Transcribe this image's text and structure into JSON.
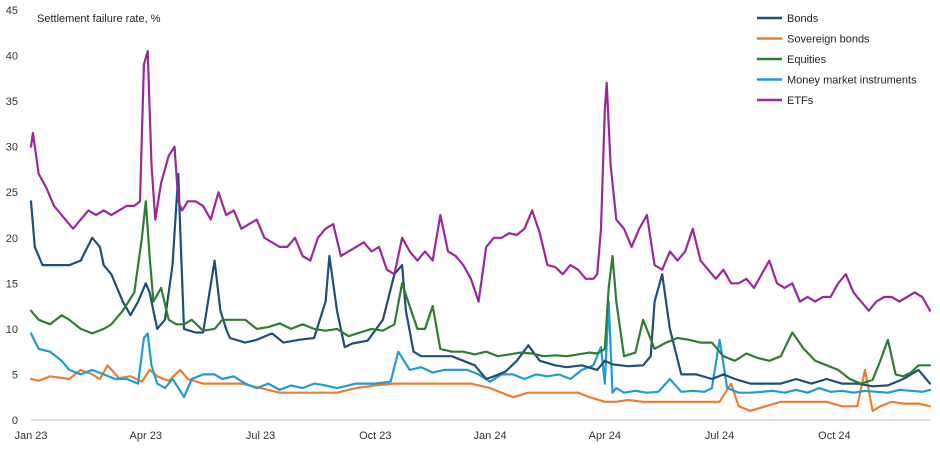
{
  "chart_data": {
    "type": "line",
    "title": "Settlement failure rate, %",
    "xlabel": "",
    "ylabel": "Settlement failure rate, %",
    "ylim": [
      0,
      45
    ],
    "y_ticks": [
      0,
      5,
      10,
      15,
      20,
      25,
      30,
      35,
      40,
      45
    ],
    "xlim": [
      0,
      23.5
    ],
    "x_tick_labels": [
      {
        "x": 0,
        "label": "Jan 23"
      },
      {
        "x": 3,
        "label": "Apr 23"
      },
      {
        "x": 6,
        "label": "Jul 23"
      },
      {
        "x": 9,
        "label": "Oct 23"
      },
      {
        "x": 12,
        "label": "Jan 24"
      },
      {
        "x": 15,
        "label": "Apr 24"
      },
      {
        "x": 18,
        "label": "Jul 24"
      },
      {
        "x": 21,
        "label": "Oct 24"
      }
    ],
    "grid": false,
    "legend": "top-right",
    "series": [
      {
        "name": "Bonds",
        "color": "#1f4e79",
        "x": [
          0,
          0.1,
          0.3,
          0.6,
          1,
          1.3,
          1.6,
          1.8,
          1.9,
          2.1,
          2.4,
          2.6,
          2.8,
          3.0,
          3.1,
          3.2,
          3.3,
          3.5,
          3.7,
          3.85,
          3.9,
          4.0,
          4.3,
          4.5,
          4.8,
          4.95,
          5.1,
          5.2,
          5.6,
          5.9,
          6.3,
          6.6,
          7.0,
          7.4,
          7.7,
          7.8,
          8.0,
          8.2,
          8.4,
          8.8,
          9.2,
          9.5,
          9.7,
          9.8,
          10.0,
          10.2,
          10.6,
          11.0,
          11.3,
          11.6,
          11.9,
          12.1,
          12.4,
          12.7,
          13.0,
          13.3,
          13.7,
          14.0,
          14.4,
          14.8,
          15.0,
          15.2,
          15.6,
          16.0,
          16.2,
          16.3,
          16.5,
          16.7,
          17.0,
          17.4,
          17.8,
          18.1,
          18.4,
          18.8,
          19.2,
          19.6,
          20.0,
          20.4,
          20.8,
          21.2,
          21.6,
          22.0,
          22.4,
          22.8,
          23.2,
          23.5
        ],
        "values": [
          24,
          19,
          17,
          17,
          17,
          17.5,
          20,
          19,
          17,
          16,
          13,
          11.5,
          13,
          15,
          14,
          12,
          10,
          11,
          17,
          27,
          21,
          10,
          9.6,
          9.6,
          17.5,
          12,
          10,
          9,
          8.5,
          8.8,
          9.5,
          8.5,
          8.8,
          9,
          13,
          18,
          12,
          8,
          8.4,
          8.7,
          11,
          16,
          17,
          12,
          7.5,
          7,
          7,
          7,
          6.5,
          6,
          4.5,
          4.8,
          5.3,
          6.5,
          8.2,
          6.5,
          6,
          5.8,
          6,
          5.5,
          6.5,
          6.1,
          5.9,
          6,
          7,
          13,
          16,
          10,
          5,
          5,
          4.5,
          5,
          4.5,
          4,
          4,
          4,
          4.5,
          4,
          4.5,
          4,
          4,
          3.7,
          3.8,
          4.5,
          5.5,
          4
        ]
      },
      {
        "name": "Sovereign bonds",
        "color": "#ed7d31",
        "x": [
          0,
          0.2,
          0.5,
          1,
          1.3,
          1.6,
          1.8,
          2.0,
          2.3,
          2.6,
          2.9,
          3.1,
          3.3,
          3.6,
          3.9,
          4.1,
          4.5,
          5.0,
          5.5,
          6.0,
          6.5,
          7.0,
          7.5,
          8.0,
          8.5,
          9.0,
          9.5,
          10.0,
          10.5,
          11.0,
          11.5,
          12.0,
          12.3,
          12.6,
          13.0,
          13.5,
          14.0,
          14.3,
          14.6,
          15.0,
          15.3,
          15.6,
          16.0,
          16.5,
          17.0,
          17.5,
          18.0,
          18.3,
          18.5,
          18.8,
          19.2,
          19.6,
          20.0,
          20.4,
          20.8,
          21.2,
          21.6,
          21.8,
          22.0,
          22.2,
          22.5,
          22.8,
          23.2,
          23.5
        ],
        "values": [
          4.5,
          4.3,
          4.8,
          4.5,
          5.5,
          5,
          4.5,
          6,
          4.6,
          4.8,
          4.2,
          5.5,
          4.8,
          4.3,
          5.5,
          4.5,
          4,
          4,
          4,
          3.5,
          3,
          3,
          3,
          3,
          3.5,
          3.8,
          4,
          4,
          4,
          4,
          4,
          3.5,
          3,
          2.5,
          3,
          3,
          3,
          3,
          2.5,
          2,
          2,
          2.2,
          2,
          2,
          2,
          2,
          2,
          4,
          1.5,
          1,
          1.5,
          2,
          2,
          2,
          2,
          1.5,
          1.5,
          5.5,
          1,
          1.5,
          2,
          1.8,
          1.8,
          1.5
        ]
      },
      {
        "name": "Equities",
        "color": "#2e7d32",
        "x": [
          0,
          0.2,
          0.5,
          0.8,
          1.0,
          1.3,
          1.6,
          1.9,
          2.1,
          2.4,
          2.7,
          2.9,
          3.0,
          3.1,
          3.2,
          3.4,
          3.6,
          3.8,
          4.0,
          4.2,
          4.5,
          4.8,
          5.0,
          5.3,
          5.6,
          5.9,
          6.2,
          6.5,
          6.8,
          7.1,
          7.4,
          7.7,
          8.0,
          8.3,
          8.6,
          8.9,
          9.2,
          9.5,
          9.7,
          9.9,
          10.1,
          10.3,
          10.5,
          10.7,
          11.0,
          11.3,
          11.6,
          11.9,
          12.2,
          12.5,
          12.8,
          13.1,
          13.4,
          13.7,
          14.0,
          14.3,
          14.6,
          14.8,
          15.0,
          15.1,
          15.2,
          15.3,
          15.5,
          15.8,
          16.0,
          16.3,
          16.6,
          16.9,
          17.2,
          17.5,
          17.8,
          18.1,
          18.4,
          18.7,
          19.0,
          19.3,
          19.6,
          19.9,
          20.2,
          20.5,
          20.8,
          21.1,
          21.4,
          21.7,
          22.0,
          22.2,
          22.4,
          22.6,
          22.8,
          23.0,
          23.2,
          23.5
        ],
        "values": [
          12,
          11,
          10.5,
          11.5,
          11,
          10,
          9.5,
          10,
          10.5,
          12,
          14,
          20,
          24,
          18,
          13,
          14.5,
          11,
          10.5,
          10.5,
          11,
          9.8,
          10,
          11,
          11,
          11,
          10,
          10.2,
          10.6,
          10,
          10.5,
          10,
          9.8,
          10,
          9.2,
          9.6,
          10,
          9.8,
          10.5,
          15,
          12.5,
          10,
          10,
          12.5,
          7.8,
          7.5,
          7.5,
          7.2,
          7.5,
          7,
          7.2,
          7.4,
          7.3,
          7,
          7.1,
          7,
          7.2,
          7.4,
          7.3,
          7.8,
          14.5,
          18,
          13,
          7,
          7.4,
          11,
          7.8,
          8.5,
          9,
          8.8,
          8.5,
          8.5,
          7,
          6.5,
          7.3,
          6.8,
          6.5,
          7,
          9.6,
          7.8,
          6.5,
          6,
          5.5,
          4.5,
          4,
          4.4,
          6.5,
          8.8,
          5,
          4.8,
          5.2,
          6,
          6
        ]
      },
      {
        "name": "Money market instruments",
        "color": "#1f9bd6",
        "x": [
          0,
          0.2,
          0.5,
          0.8,
          1.0,
          1.3,
          1.6,
          1.9,
          2.2,
          2.5,
          2.8,
          2.95,
          3.05,
          3.15,
          3.3,
          3.5,
          3.7,
          3.9,
          4.0,
          4.2,
          4.5,
          4.8,
          5.0,
          5.3,
          5.6,
          5.9,
          6.2,
          6.5,
          6.8,
          7.1,
          7.4,
          7.7,
          8.0,
          8.5,
          9.0,
          9.4,
          9.6,
          9.9,
          10.2,
          10.5,
          10.8,
          11.1,
          11.4,
          11.7,
          12.0,
          12.3,
          12.6,
          12.9,
          13.2,
          13.5,
          13.8,
          14.1,
          14.4,
          14.7,
          14.9,
          15.0,
          15.1,
          15.2,
          15.3,
          15.5,
          15.8,
          16.1,
          16.4,
          16.7,
          17.0,
          17.3,
          17.6,
          17.8,
          18.0,
          18.2,
          18.5,
          18.8,
          19.1,
          19.4,
          19.7,
          20.0,
          20.3,
          20.6,
          20.9,
          21.2,
          21.5,
          21.8,
          22.1,
          22.4,
          22.7,
          23.0,
          23.3,
          23.5
        ],
        "values": [
          9.5,
          7.8,
          7.5,
          6.5,
          5.5,
          5,
          5.5,
          5,
          4.5,
          4.5,
          4,
          9,
          9.5,
          6,
          4,
          3.5,
          4.5,
          3.2,
          2.5,
          4.5,
          5,
          5,
          4.5,
          4.8,
          4,
          3.5,
          4,
          3.3,
          3.8,
          3.5,
          4,
          3.8,
          3.5,
          4,
          4,
          4.2,
          7.5,
          5.5,
          5.8,
          5.2,
          5.5,
          5.5,
          5.5,
          5,
          4.2,
          5,
          5,
          4.5,
          5,
          4.8,
          5,
          4.5,
          5.5,
          6,
          8,
          4,
          13,
          3,
          3.5,
          3,
          3.2,
          3,
          3.1,
          4.5,
          3.1,
          3.2,
          3.1,
          3.5,
          8.8,
          3.5,
          3,
          3,
          3.1,
          3.2,
          3,
          3.3,
          3,
          3.5,
          3.1,
          3.2,
          3,
          3.2,
          3.1,
          3,
          3.3,
          3.2,
          3.1,
          3.3
        ]
      },
      {
        "name": "ETFs",
        "color": "#9c279c",
        "x": [
          0,
          0.05,
          0.2,
          0.4,
          0.6,
          0.9,
          1.1,
          1.3,
          1.5,
          1.7,
          1.9,
          2.1,
          2.3,
          2.5,
          2.7,
          2.85,
          2.95,
          3.05,
          3.15,
          3.25,
          3.4,
          3.6,
          3.75,
          3.85,
          3.95,
          4.1,
          4.3,
          4.5,
          4.7,
          4.9,
          5.1,
          5.3,
          5.5,
          5.7,
          5.9,
          6.1,
          6.3,
          6.5,
          6.7,
          6.9,
          7.1,
          7.3,
          7.5,
          7.7,
          7.9,
          8.1,
          8.3,
          8.5,
          8.7,
          8.9,
          9.1,
          9.3,
          9.5,
          9.7,
          9.9,
          10.1,
          10.3,
          10.5,
          10.7,
          10.9,
          11.1,
          11.3,
          11.5,
          11.7,
          11.9,
          12.1,
          12.3,
          12.5,
          12.7,
          12.9,
          13.1,
          13.3,
          13.5,
          13.7,
          13.9,
          14.1,
          14.3,
          14.5,
          14.7,
          14.8,
          14.9,
          15.0,
          15.05,
          15.15,
          15.3,
          15.5,
          15.7,
          15.9,
          16.1,
          16.3,
          16.5,
          16.7,
          16.9,
          17.1,
          17.3,
          17.5,
          17.7,
          17.9,
          18.1,
          18.3,
          18.5,
          18.7,
          18.9,
          19.1,
          19.3,
          19.5,
          19.7,
          19.9,
          20.1,
          20.3,
          20.5,
          20.7,
          20.9,
          21.1,
          21.3,
          21.5,
          21.7,
          21.9,
          22.1,
          22.3,
          22.5,
          22.7,
          22.9,
          23.1,
          23.3,
          23.5
        ],
        "values": [
          30,
          31.5,
          27,
          25.5,
          23.5,
          22,
          21,
          22,
          23,
          22.5,
          23,
          22.5,
          23,
          23.5,
          23.5,
          24,
          39,
          40.5,
          28,
          22,
          26,
          29,
          30,
          24,
          23,
          24,
          24,
          23.5,
          22,
          25,
          22.5,
          23,
          21,
          21.5,
          22,
          20,
          19.5,
          19,
          19,
          20,
          18,
          17.5,
          20,
          21,
          21.5,
          18,
          18.5,
          19,
          19.5,
          18.5,
          19,
          16.5,
          16,
          20,
          18.5,
          17.5,
          18.5,
          17.5,
          22.5,
          18.5,
          18,
          17,
          15.5,
          13,
          19,
          20,
          20,
          20.5,
          20.3,
          21,
          23,
          20.5,
          17,
          16.8,
          16,
          17,
          16.5,
          15.5,
          15.5,
          16,
          21,
          34,
          37,
          28,
          22,
          21,
          19,
          21,
          22.5,
          17,
          16.5,
          18.5,
          17.5,
          18.5,
          21,
          17.5,
          16.5,
          15.5,
          16.5,
          15,
          15,
          15.5,
          14.5,
          16,
          17.5,
          15,
          14.5,
          15,
          13,
          13.5,
          13,
          13.5,
          13.5,
          15,
          16,
          14,
          13,
          12,
          13,
          13.5,
          13.5,
          13,
          13.5,
          14,
          13.5,
          12
        ]
      }
    ]
  }
}
